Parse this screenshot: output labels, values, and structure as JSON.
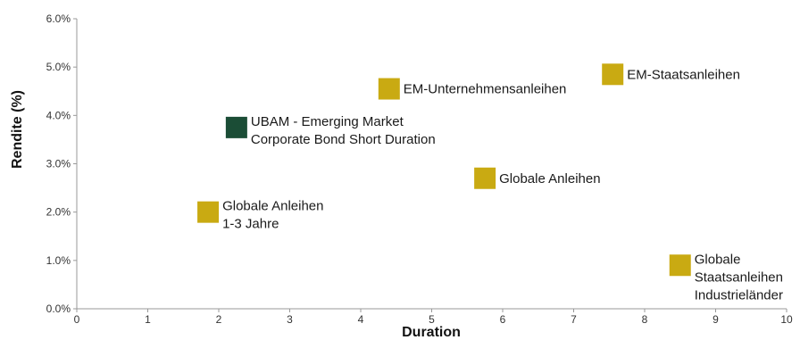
{
  "chart_data": {
    "type": "scatter",
    "title": "",
    "xlabel": "Duration",
    "ylabel": "Rendite (%)",
    "xlim": [
      0,
      10
    ],
    "ylim": [
      0,
      6
    ],
    "x_ticks": [
      "0",
      "1",
      "2",
      "3",
      "4",
      "5",
      "6",
      "7",
      "8",
      "9",
      "10"
    ],
    "y_ticks": [
      "0.0%",
      "1.0%",
      "2.0%",
      "3.0%",
      "4.0%",
      "5.0%",
      "6.0%"
    ],
    "grid": false,
    "colors": {
      "fund": "#1b4d36",
      "benchmark": "#c9aa12",
      "axis": "#999999"
    },
    "points": [
      {
        "name": "UBAM - Emerging Market Corporate Bond Short Duration",
        "label_lines": [
          "UBAM  - Emerging Market",
          "Corporate Bond Short Duration"
        ],
        "x": 2.25,
        "y": 3.75,
        "kind": "fund"
      },
      {
        "name": "EM-Unternehmensanleihen",
        "label_lines": [
          "EM-Unternehmensanleihen"
        ],
        "x": 4.4,
        "y": 4.55,
        "kind": "benchmark"
      },
      {
        "name": "EM-Staatsanleihen",
        "label_lines": [
          "EM-Staatsanleihen"
        ],
        "x": 7.55,
        "y": 4.85,
        "kind": "benchmark"
      },
      {
        "name": "Globale Anleihen",
        "label_lines": [
          "Globale Anleihen"
        ],
        "x": 5.75,
        "y": 2.7,
        "kind": "benchmark"
      },
      {
        "name": "Globale Anleihen 1-3 Jahre",
        "label_lines": [
          "Globale Anleihen",
          "1-3 Jahre"
        ],
        "x": 1.85,
        "y": 2.0,
        "kind": "benchmark"
      },
      {
        "name": "Globale Staatsanleihen Industrieländer",
        "label_lines": [
          "Globale",
          "Staatsanleihen",
          "Industrieländer"
        ],
        "x": 8.5,
        "y": 0.9,
        "kind": "benchmark"
      }
    ]
  }
}
